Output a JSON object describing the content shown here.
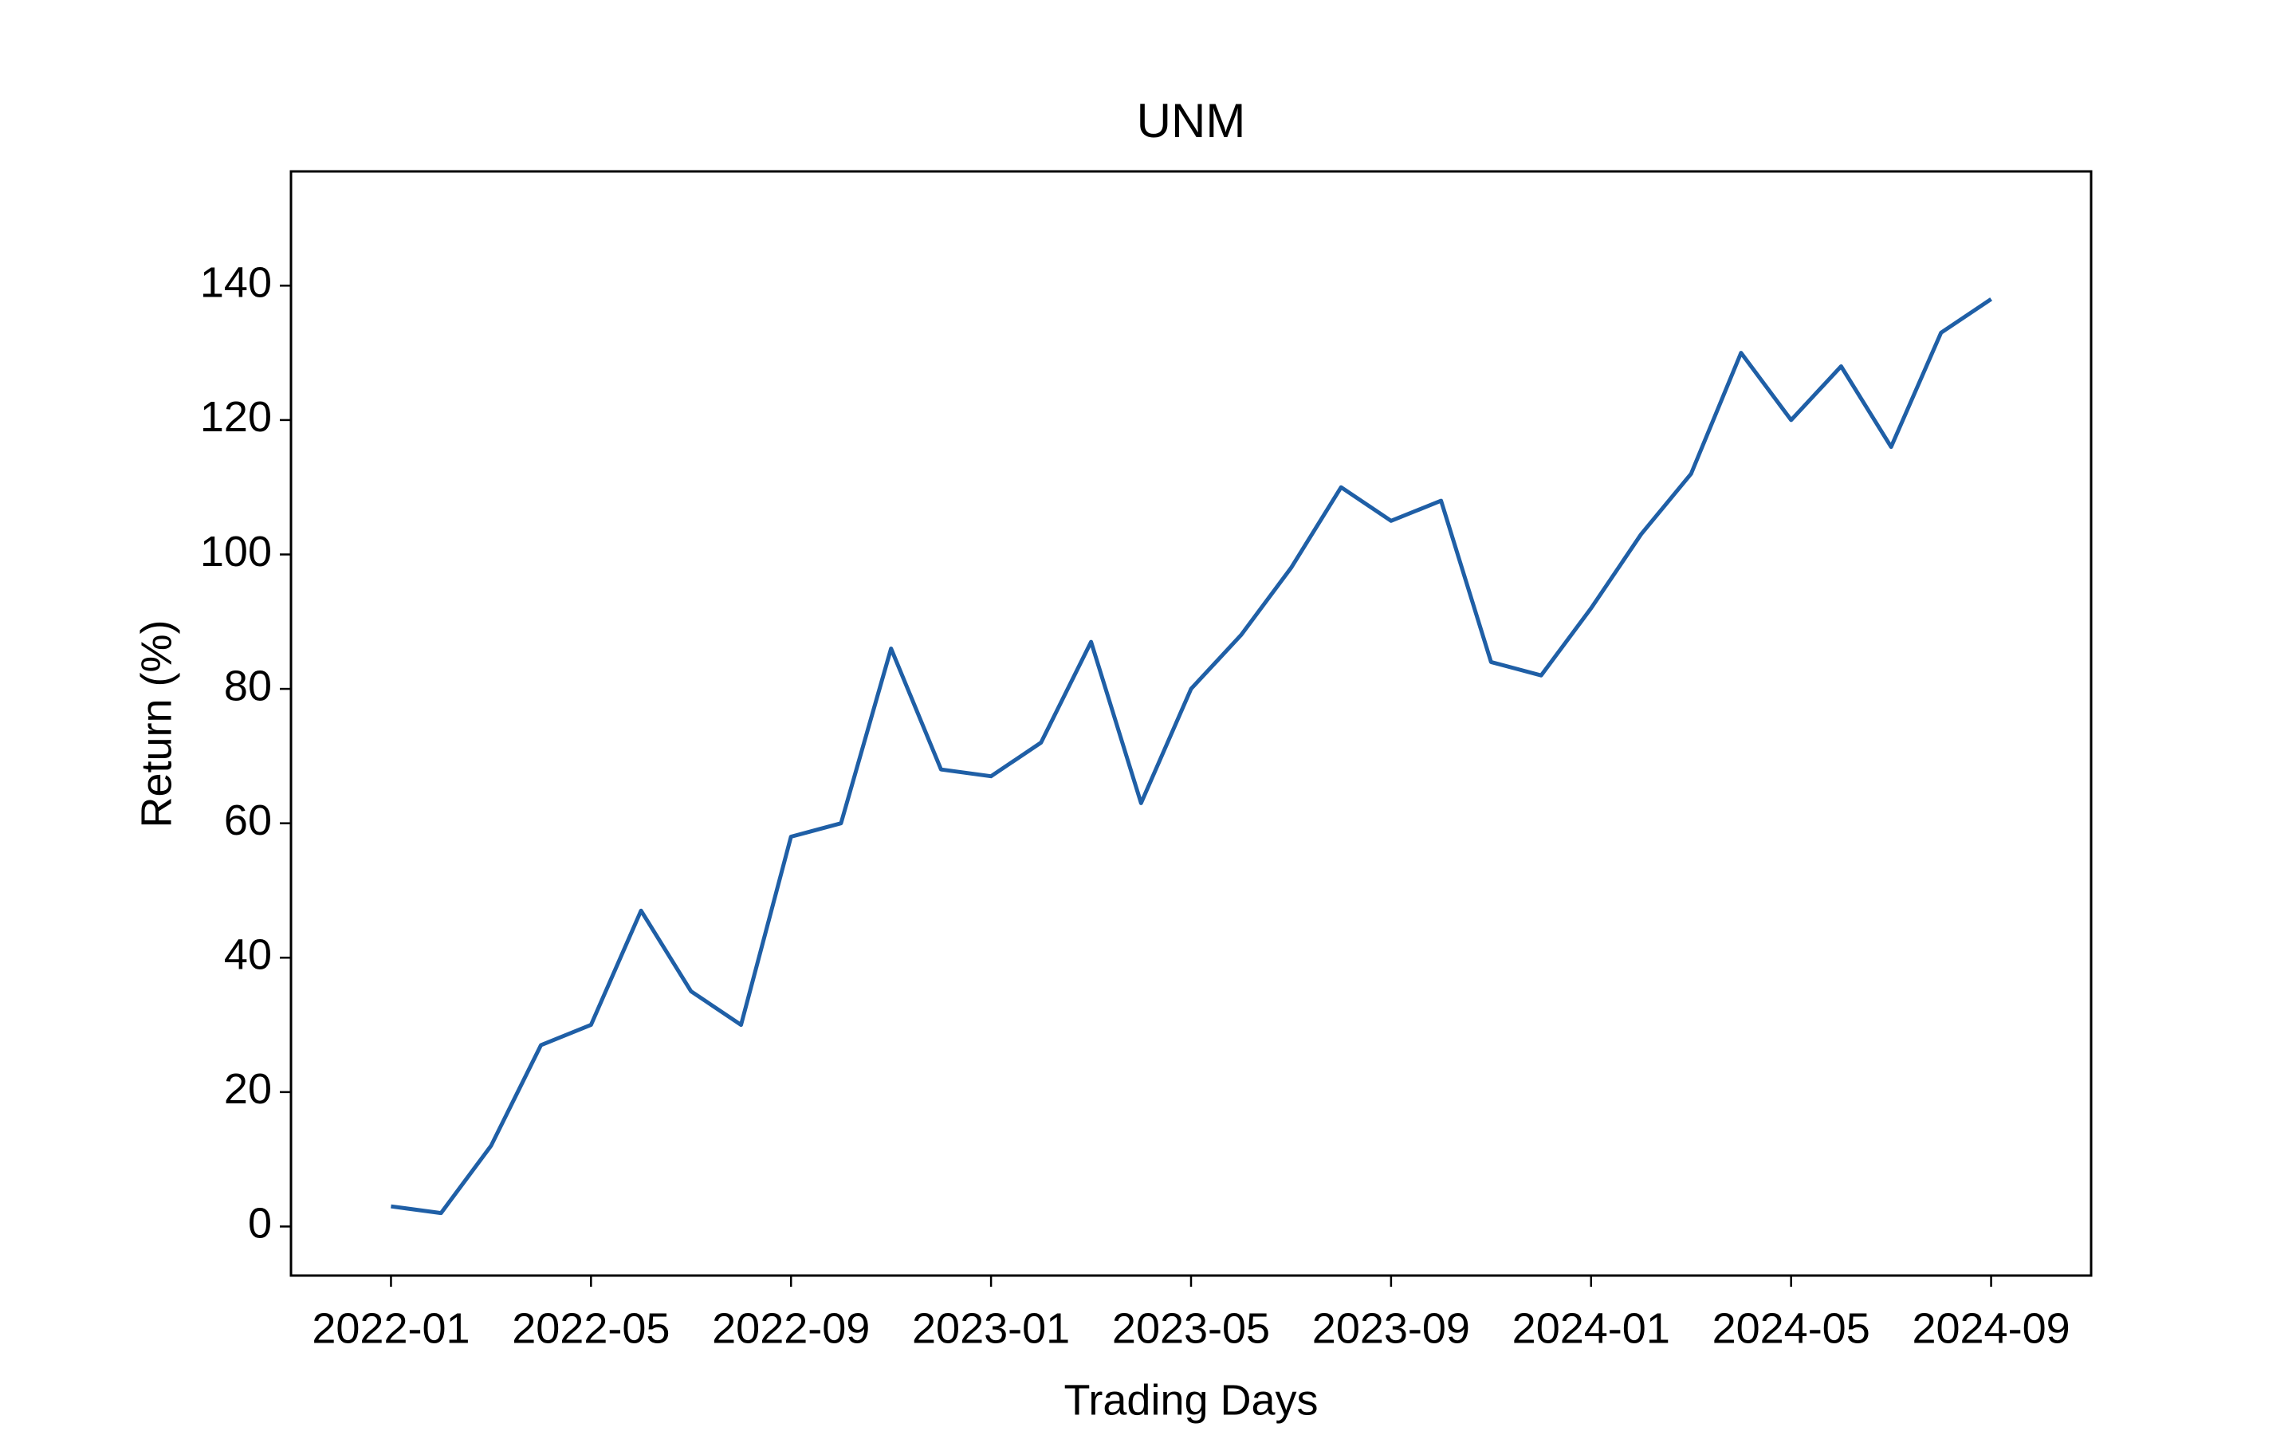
{
  "chart_data": {
    "type": "line",
    "title": "UNM",
    "xlabel": "Trading Days",
    "ylabel": "Return (%)",
    "x": [
      "2022-01",
      "2022-02",
      "2022-03",
      "2022-04",
      "2022-05",
      "2022-06",
      "2022-07",
      "2022-08",
      "2022-09",
      "2022-10",
      "2022-11",
      "2022-12",
      "2023-01",
      "2023-02",
      "2023-03",
      "2023-04",
      "2023-05",
      "2023-06",
      "2023-07",
      "2023-08",
      "2023-09",
      "2023-10",
      "2023-11",
      "2023-12",
      "2024-01",
      "2024-02",
      "2024-03",
      "2024-04",
      "2024-05",
      "2024-06",
      "2024-07",
      "2024-08",
      "2024-09"
    ],
    "series": [
      {
        "name": "UNM",
        "color": "#1f5fa6",
        "values": [
          3,
          2,
          12,
          27,
          30,
          47,
          35,
          30,
          58,
          60,
          86,
          68,
          67,
          72,
          87,
          63,
          80,
          88,
          98,
          110,
          105,
          108,
          84,
          82,
          92,
          103,
          112,
          130,
          120,
          128,
          116,
          133,
          138
        ]
      }
    ],
    "xlim": [
      "2021-11",
      "2024-11"
    ],
    "xticks": [
      "2022-01",
      "2022-05",
      "2022-09",
      "2023-01",
      "2023-05",
      "2023-09",
      "2024-01",
      "2024-05",
      "2024-09"
    ],
    "ylim": [
      -7.3,
      157
    ],
    "yticks": [
      0,
      20,
      40,
      60,
      80,
      100,
      120,
      140
    ],
    "grid": false,
    "legend": false
  }
}
